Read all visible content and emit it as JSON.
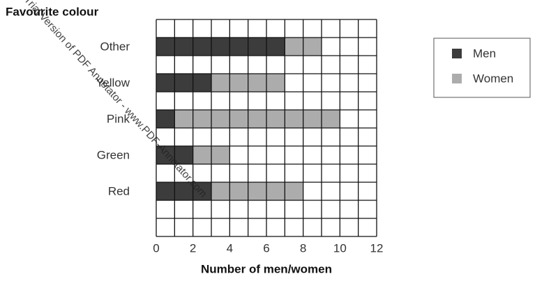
{
  "chart_data": {
    "type": "bar",
    "orientation": "horizontal",
    "stacked": true,
    "y_label": "Favourite colour",
    "x_label": "Number of men/women",
    "categories": [
      "Other",
      "Yellow",
      "Pink",
      "Green",
      "Red"
    ],
    "series": [
      {
        "name": "Men",
        "color": "#3c3c3c",
        "values": [
          7,
          3,
          1,
          2,
          3
        ]
      },
      {
        "name": "Women",
        "color": "#acacac",
        "values": [
          2,
          4,
          9,
          2,
          5
        ]
      }
    ],
    "xlim": [
      0,
      12
    ],
    "xticks": [
      0,
      2,
      4,
      6,
      8,
      10,
      12
    ],
    "grid": true,
    "legend": "right",
    "watermark": "Trial Version of PDF Annotator - www.PDF-Annotator.com"
  }
}
